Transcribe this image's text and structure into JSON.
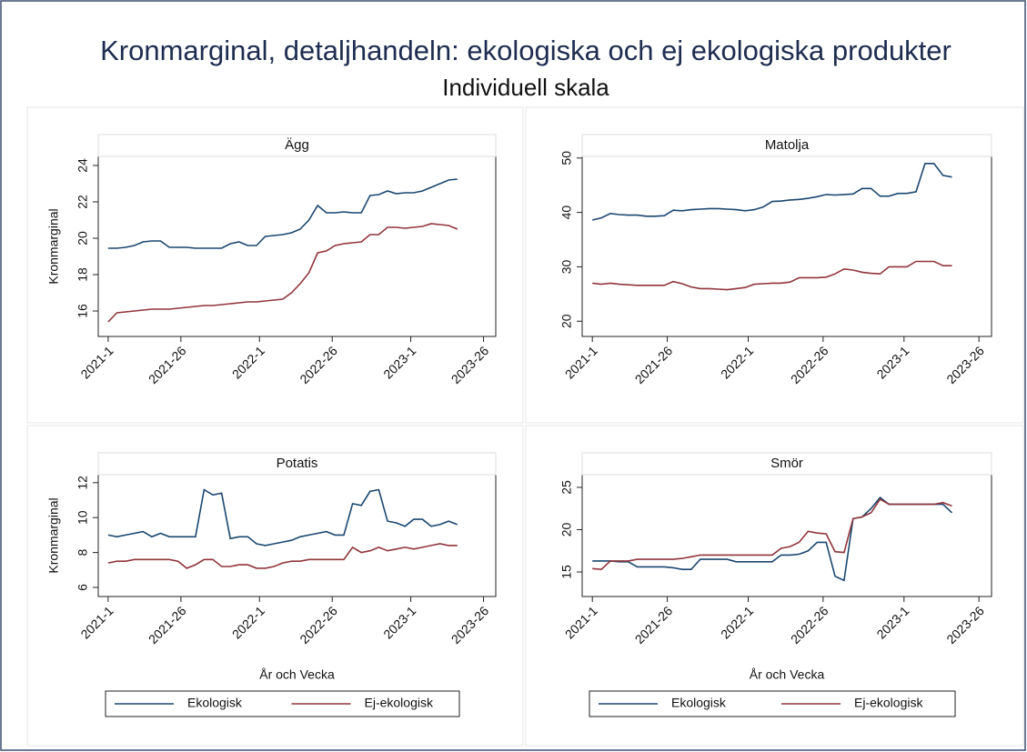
{
  "title": "Kronmarginal, detaljhandeln: ekologiska och ej ekologiska produkter",
  "subtitle": "Individuell skala",
  "chart_data": [
    {
      "type": "line",
      "title": "Ägg",
      "ylabel": "Kronmarginal",
      "legend": false,
      "x": [
        0,
        3,
        6,
        9,
        12,
        15,
        18,
        21,
        24,
        27,
        30,
        33,
        36,
        39,
        42,
        45,
        48,
        51,
        54,
        57,
        60,
        63,
        66,
        69,
        72,
        75,
        78,
        81,
        84,
        87,
        90,
        93,
        96,
        99,
        102,
        105,
        108,
        111,
        114,
        117,
        120
      ],
      "xlim": [
        -3.4,
        133.2
      ],
      "ylim": [
        14.6,
        24.5
      ],
      "xticks": [
        {
          "value": 0,
          "label": "2021-1"
        },
        {
          "value": 25,
          "label": "2021-26"
        },
        {
          "value": 52,
          "label": "2022-1"
        },
        {
          "value": 77,
          "label": "2022-26"
        },
        {
          "value": 104,
          "label": "2023-1"
        },
        {
          "value": 129,
          "label": "2023-26"
        }
      ],
      "yticks": [
        16,
        18,
        20,
        22,
        24
      ],
      "series": [
        {
          "name": "Ekologisk",
          "color": "#1a476f",
          "values": [
            19.45,
            19.45,
            19.5,
            19.6,
            19.8,
            19.85,
            19.85,
            19.5,
            19.5,
            19.5,
            19.45,
            19.45,
            19.45,
            19.45,
            19.7,
            19.8,
            19.6,
            19.6,
            20.1,
            20.15,
            20.2,
            20.3,
            20.5,
            21.0,
            21.8,
            21.4,
            21.4,
            21.45,
            21.4,
            21.4,
            22.35,
            22.4,
            22.6,
            22.45,
            22.5,
            22.5,
            22.6,
            22.8,
            23.0,
            23.2,
            23.25
          ]
        },
        {
          "name": "Ej-ekologisk",
          "color": "#90353b",
          "values": [
            15.4,
            15.9,
            15.95,
            16.0,
            16.05,
            16.1,
            16.1,
            16.1,
            16.15,
            16.2,
            16.25,
            16.3,
            16.3,
            16.35,
            16.4,
            16.45,
            16.5,
            16.5,
            16.55,
            16.6,
            16.65,
            17.0,
            17.5,
            18.1,
            19.2,
            19.3,
            19.6,
            19.7,
            19.75,
            19.8,
            20.2,
            20.2,
            20.6,
            20.6,
            20.55,
            20.6,
            20.65,
            20.8,
            20.75,
            20.7,
            20.5
          ]
        }
      ]
    },
    {
      "type": "line",
      "title": "Matolja",
      "legend": false,
      "x": [
        0,
        3,
        6,
        9,
        12,
        15,
        18,
        21,
        24,
        27,
        30,
        33,
        36,
        39,
        42,
        45,
        48,
        51,
        54,
        57,
        60,
        63,
        66,
        69,
        72,
        75,
        78,
        81,
        84,
        87,
        90,
        93,
        96,
        99,
        102,
        105,
        108,
        111,
        114,
        117,
        120
      ],
      "xlim": [
        -3.4,
        133.2
      ],
      "ylim": [
        17.2,
        50.3
      ],
      "xticks": [
        {
          "value": 0,
          "label": "2021-1"
        },
        {
          "value": 25,
          "label": "2021-26"
        },
        {
          "value": 52,
          "label": "2022-1"
        },
        {
          "value": 77,
          "label": "2022-26"
        },
        {
          "value": 104,
          "label": "2023-1"
        },
        {
          "value": 129,
          "label": "2023-26"
        }
      ],
      "yticks": [
        20,
        30,
        40,
        50
      ],
      "series": [
        {
          "name": "Ekologisk",
          "color": "#1a476f",
          "values": [
            38.6,
            39.0,
            39.8,
            39.6,
            39.5,
            39.5,
            39.3,
            39.3,
            39.4,
            40.4,
            40.3,
            40.5,
            40.6,
            40.7,
            40.7,
            40.6,
            40.5,
            40.3,
            40.5,
            41.0,
            42.0,
            42.1,
            42.3,
            42.4,
            42.6,
            42.9,
            43.3,
            43.2,
            43.3,
            43.4,
            44.4,
            44.4,
            43.0,
            43.0,
            43.5,
            43.5,
            43.8,
            49.0,
            49.0,
            46.8,
            46.5
          ]
        },
        {
          "name": "Ej-ekologisk",
          "color": "#90353b",
          "values": [
            27.0,
            26.8,
            27.0,
            26.8,
            26.7,
            26.6,
            26.6,
            26.6,
            26.6,
            27.3,
            26.9,
            26.3,
            26.0,
            26.0,
            25.9,
            25.8,
            26.0,
            26.2,
            26.8,
            26.9,
            27.0,
            27.0,
            27.2,
            28.0,
            28.0,
            28.0,
            28.1,
            28.7,
            29.6,
            29.4,
            29.0,
            28.8,
            28.7,
            30.0,
            30.0,
            30.0,
            31.0,
            31.0,
            31.0,
            30.2,
            30.2
          ]
        }
      ]
    },
    {
      "type": "line",
      "title": "Potatis",
      "ylabel": "Kronmarginal",
      "xlabel": "År och Vecka",
      "legend": "bottom",
      "x": [
        0,
        3,
        6,
        9,
        12,
        15,
        18,
        21,
        24,
        27,
        30,
        33,
        36,
        39,
        42,
        45,
        48,
        51,
        54,
        57,
        60,
        63,
        66,
        69,
        72,
        75,
        78,
        81,
        84,
        87,
        90,
        93,
        96,
        99,
        102,
        105,
        108,
        111,
        114,
        117,
        120
      ],
      "xlim": [
        -3.4,
        133.2
      ],
      "ylim": [
        5.48,
        12.46
      ],
      "xticks": [
        {
          "value": 0,
          "label": "2021-1"
        },
        {
          "value": 25,
          "label": "2021-26"
        },
        {
          "value": 52,
          "label": "2022-1"
        },
        {
          "value": 77,
          "label": "2022-26"
        },
        {
          "value": 104,
          "label": "2023-1"
        },
        {
          "value": 129,
          "label": "2023-26"
        }
      ],
      "yticks": [
        6,
        8,
        10,
        12
      ],
      "series": [
        {
          "name": "Ekologisk",
          "color": "#1a476f",
          "values": [
            9.0,
            8.9,
            9.0,
            9.1,
            9.2,
            8.9,
            9.1,
            8.9,
            8.9,
            8.9,
            8.9,
            11.6,
            11.3,
            11.4,
            8.8,
            8.9,
            8.9,
            8.5,
            8.4,
            8.5,
            8.6,
            8.7,
            8.9,
            9.0,
            9.1,
            9.2,
            9.0,
            9.0,
            10.8,
            10.7,
            11.5,
            11.6,
            9.8,
            9.7,
            9.5,
            9.9,
            9.9,
            9.5,
            9.6,
            9.8,
            9.6
          ]
        },
        {
          "name": "Ej-ekologisk",
          "color": "#90353b",
          "values": [
            7.4,
            7.5,
            7.5,
            7.6,
            7.6,
            7.6,
            7.6,
            7.6,
            7.5,
            7.1,
            7.3,
            7.6,
            7.6,
            7.2,
            7.2,
            7.3,
            7.3,
            7.1,
            7.1,
            7.2,
            7.4,
            7.5,
            7.5,
            7.6,
            7.6,
            7.6,
            7.6,
            7.6,
            8.3,
            8.0,
            8.1,
            8.3,
            8.1,
            8.2,
            8.3,
            8.2,
            8.3,
            8.4,
            8.5,
            8.4,
            8.4
          ]
        }
      ]
    },
    {
      "type": "line",
      "title": "Smör",
      "xlabel": "År och Vecka",
      "legend": "bottom",
      "x": [
        0,
        3,
        6,
        9,
        12,
        15,
        18,
        21,
        24,
        27,
        30,
        33,
        36,
        39,
        42,
        45,
        48,
        51,
        54,
        57,
        60,
        63,
        66,
        69,
        72,
        75,
        78,
        81,
        84,
        87,
        90,
        93,
        96,
        99,
        102,
        105,
        108,
        111,
        114,
        117,
        120
      ],
      "xlim": [
        -3.4,
        133.2
      ],
      "ylim": [
        12.1,
        26.5
      ],
      "xticks": [
        {
          "value": 0,
          "label": "2021-1"
        },
        {
          "value": 25,
          "label": "2021-26"
        },
        {
          "value": 52,
          "label": "2022-1"
        },
        {
          "value": 77,
          "label": "2022-26"
        },
        {
          "value": 104,
          "label": "2023-1"
        },
        {
          "value": 129,
          "label": "2023-26"
        }
      ],
      "yticks": [
        15,
        20,
        25
      ],
      "series": [
        {
          "name": "Ekologisk",
          "color": "#1a476f",
          "values": [
            16.3,
            16.3,
            16.3,
            16.2,
            16.2,
            15.6,
            15.6,
            15.6,
            15.6,
            15.5,
            15.3,
            15.3,
            16.5,
            16.5,
            16.5,
            16.5,
            16.2,
            16.2,
            16.2,
            16.2,
            16.2,
            17.0,
            17.0,
            17.1,
            17.5,
            18.5,
            18.5,
            14.5,
            14.0,
            21.3,
            21.5,
            22.5,
            23.8,
            23.0,
            23.0,
            23.0,
            23.0,
            23.0,
            23.0,
            23.0,
            22.0
          ]
        },
        {
          "name": "Ej-ekologisk",
          "color": "#90353b",
          "values": [
            15.4,
            15.3,
            16.3,
            16.3,
            16.3,
            16.5,
            16.5,
            16.5,
            16.5,
            16.5,
            16.6,
            16.8,
            17.0,
            17.0,
            17.0,
            17.0,
            17.0,
            17.0,
            17.0,
            17.0,
            17.0,
            17.8,
            18.0,
            18.5,
            19.8,
            19.6,
            19.5,
            17.4,
            17.3,
            21.3,
            21.5,
            22.0,
            23.6,
            23.0,
            23.0,
            23.0,
            23.0,
            23.0,
            23.0,
            23.2,
            22.8
          ]
        }
      ]
    }
  ]
}
